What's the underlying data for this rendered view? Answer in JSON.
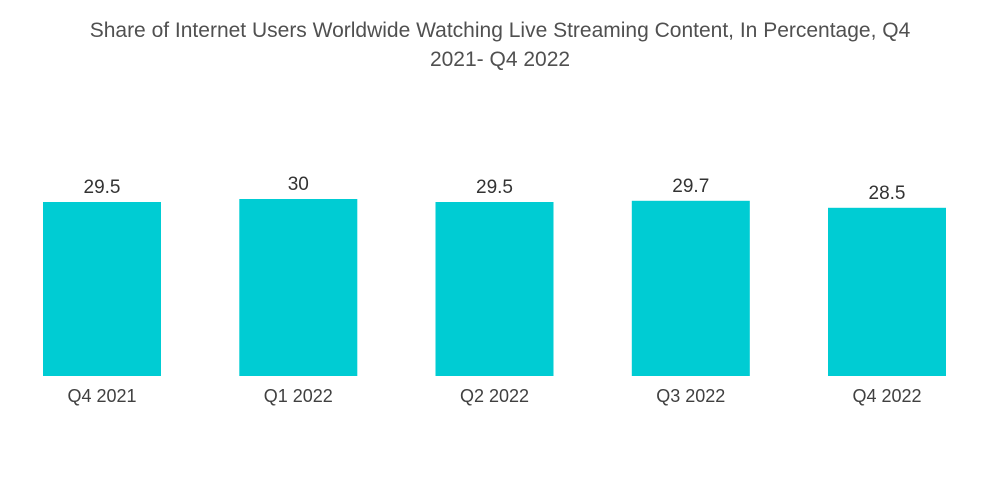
{
  "chart_data": {
    "type": "bar",
    "title_line1": "Share of Internet Users Worldwide Watching Live Streaming Content, In Percentage, Q4",
    "title_line2": "2021- Q4 2022",
    "categories": [
      "Q4 2021",
      "Q1 2022",
      "Q2 2022",
      "Q3 2022",
      "Q4 2022"
    ],
    "values": [
      29.5,
      30,
      29.5,
      29.7,
      28.5
    ],
    "value_labels": [
      "29.5",
      "30",
      "29.5",
      "29.7",
      "28.5"
    ],
    "xlabel": "",
    "ylabel": "",
    "ylim": [
      0,
      30
    ],
    "grid": false,
    "legend": "none",
    "bar_color": "#00ccd3"
  }
}
